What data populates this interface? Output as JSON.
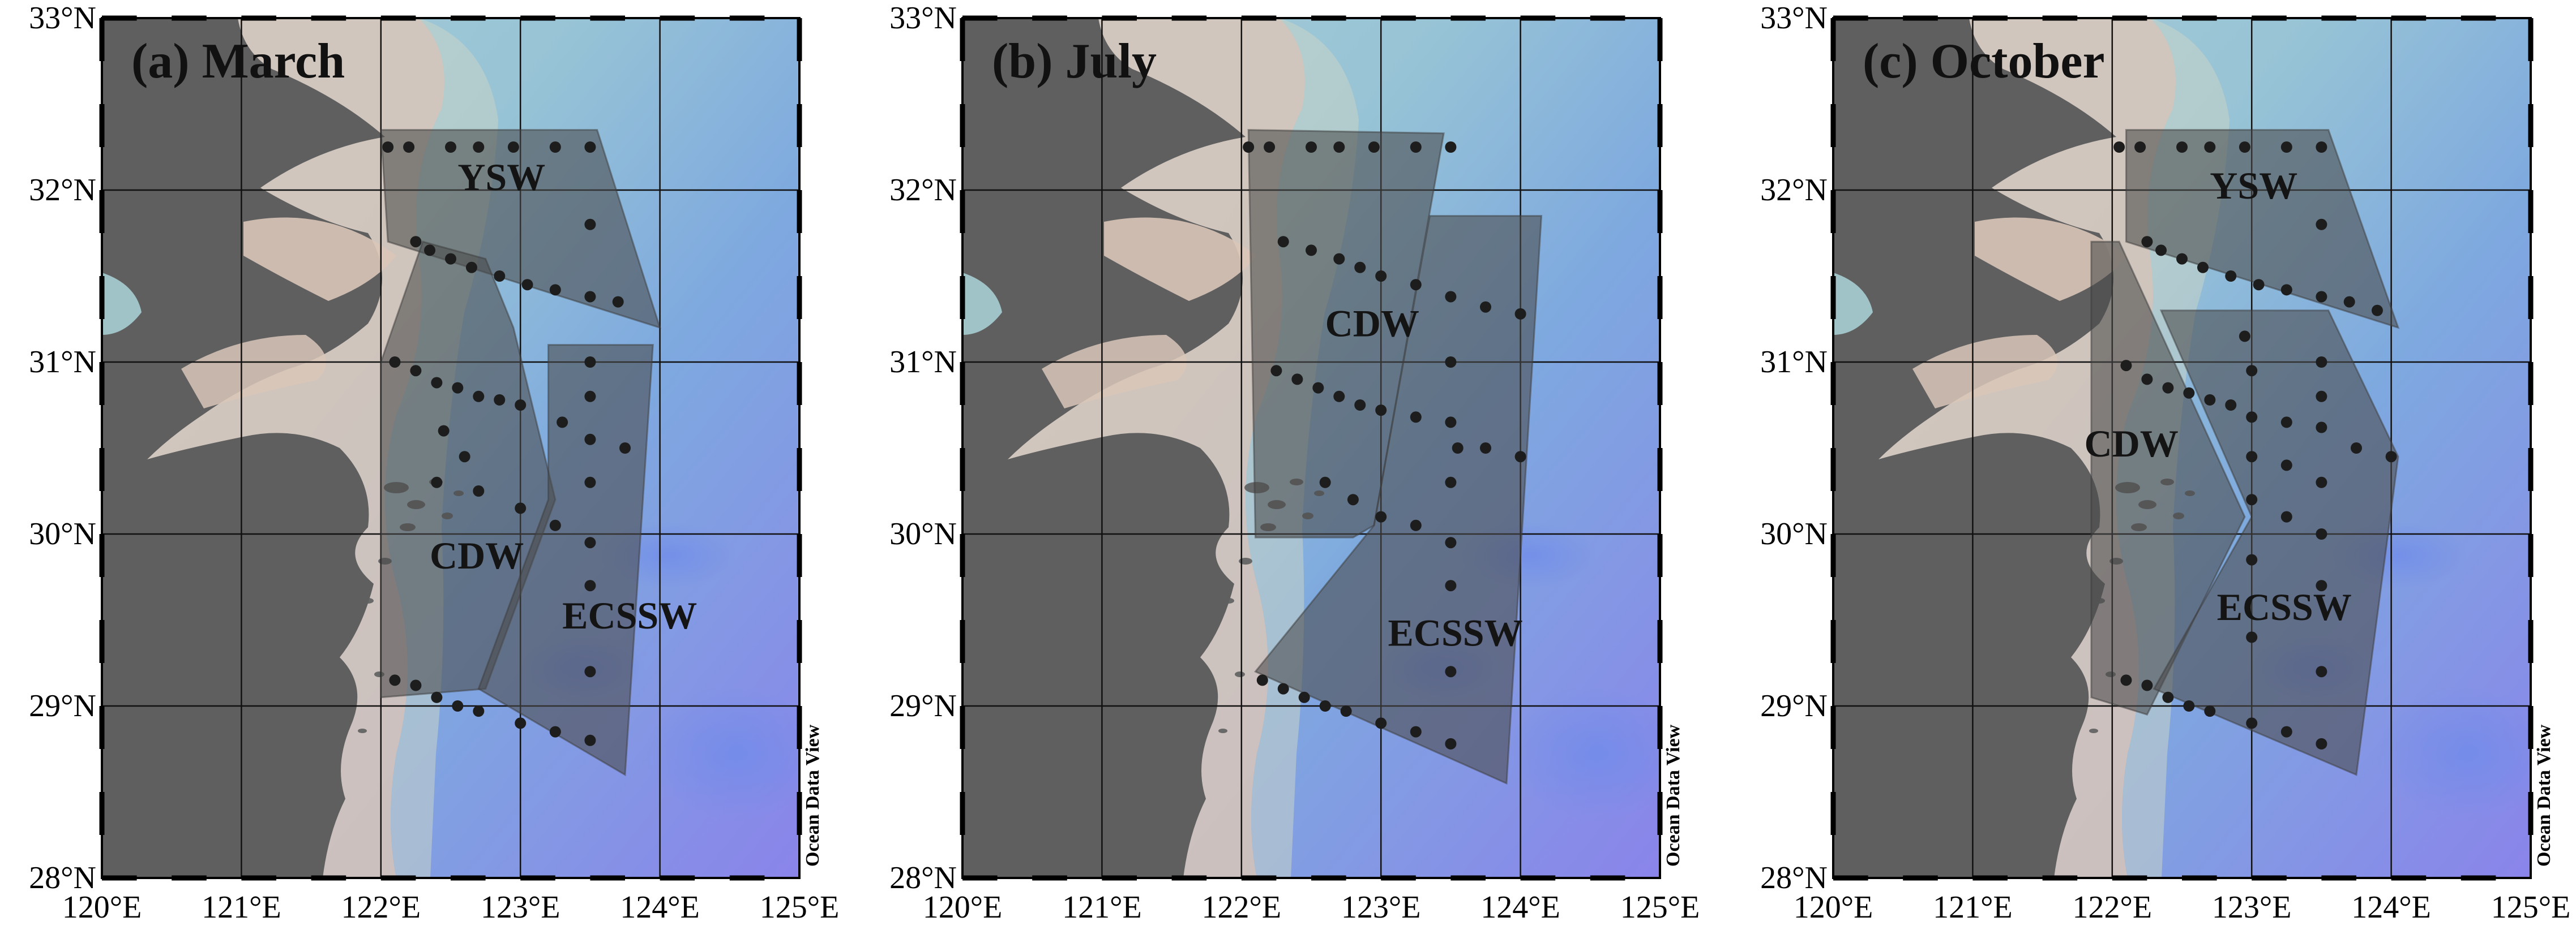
{
  "extent": {
    "lon": [
      120,
      125
    ],
    "lat": [
      28,
      33
    ]
  },
  "lon_ticks": [
    "120°E",
    "121°E",
    "122°E",
    "123°E",
    "124°E",
    "125°E"
  ],
  "lat_ticks": [
    "28°N",
    "29°N",
    "30°N",
    "31°N",
    "32°N",
    "33°N"
  ],
  "credit": "Ocean Data View",
  "colors": {
    "land": "#5f5f5f",
    "shelf_sand": "#d9c5b8",
    "sea_shallow": "#9cc7cf",
    "sea_mid": "#7ea9df",
    "sea_deep": "#8a84ea",
    "region_fill": "#4a4a4a",
    "station": "#1d1d1d"
  },
  "panels": [
    {
      "title": "(a) March",
      "regions": [
        {
          "name": "YSW",
          "label_pos": [
            122.55,
            32.0
          ],
          "polygon": [
            [
              122.0,
              32.35
            ],
            [
              123.55,
              32.35
            ],
            [
              124.0,
              31.2
            ],
            [
              122.05,
              31.7
            ]
          ]
        },
        {
          "name": "CDW",
          "label_pos": [
            122.35,
            29.8
          ],
          "polygon": [
            [
              122.3,
              31.7
            ],
            [
              122.75,
              31.6
            ],
            [
              122.95,
              31.2
            ],
            [
              123.25,
              30.2
            ],
            [
              122.75,
              29.1
            ],
            [
              122.0,
              29.05
            ],
            [
              122.0,
              31.0
            ]
          ]
        },
        {
          "name": "ECSSW",
          "label_pos": [
            123.3,
            29.45
          ],
          "polygon": [
            [
              123.2,
              31.1
            ],
            [
              123.95,
              31.1
            ],
            [
              123.75,
              28.6
            ],
            [
              122.7,
              29.1
            ],
            [
              123.2,
              30.2
            ]
          ]
        }
      ],
      "stations": [
        [
          122.05,
          32.25
        ],
        [
          122.2,
          32.25
        ],
        [
          122.5,
          32.25
        ],
        [
          122.7,
          32.25
        ],
        [
          122.95,
          32.25
        ],
        [
          123.25,
          32.25
        ],
        [
          123.5,
          32.25
        ],
        [
          123.5,
          31.8
        ],
        [
          122.25,
          31.7
        ],
        [
          122.35,
          31.65
        ],
        [
          122.5,
          31.6
        ],
        [
          122.65,
          31.55
        ],
        [
          122.85,
          31.5
        ],
        [
          123.05,
          31.45
        ],
        [
          123.25,
          31.42
        ],
        [
          123.5,
          31.38
        ],
        [
          123.7,
          31.35
        ],
        [
          122.1,
          31.0
        ],
        [
          122.25,
          30.95
        ],
        [
          122.4,
          30.88
        ],
        [
          122.55,
          30.85
        ],
        [
          122.7,
          30.8
        ],
        [
          122.85,
          30.78
        ],
        [
          123.0,
          30.75
        ],
        [
          123.5,
          31.0
        ],
        [
          123.5,
          30.8
        ],
        [
          123.3,
          30.65
        ],
        [
          123.5,
          30.55
        ],
        [
          123.75,
          30.5
        ],
        [
          123.5,
          30.3
        ],
        [
          122.45,
          30.6
        ],
        [
          122.6,
          30.45
        ],
        [
          122.4,
          30.3
        ],
        [
          122.7,
          30.25
        ],
        [
          123.0,
          30.15
        ],
        [
          123.25,
          30.05
        ],
        [
          123.5,
          29.95
        ],
        [
          123.5,
          29.7
        ],
        [
          123.5,
          29.2
        ],
        [
          122.1,
          29.15
        ],
        [
          122.25,
          29.12
        ],
        [
          122.4,
          29.05
        ],
        [
          122.55,
          29.0
        ],
        [
          122.7,
          28.97
        ],
        [
          123.0,
          28.9
        ],
        [
          123.25,
          28.85
        ],
        [
          123.5,
          28.8
        ]
      ]
    },
    {
      "title": "(b) July",
      "regions": [
        {
          "name": "CDW",
          "label_pos": [
            122.6,
            31.15
          ],
          "polygon": [
            [
              122.05,
              32.35
            ],
            [
              123.45,
              32.33
            ],
            [
              122.95,
              30.05
            ],
            [
              122.8,
              29.98
            ],
            [
              122.1,
              29.98
            ]
          ]
        },
        {
          "name": "ECSSW",
          "label_pos": [
            123.05,
            29.35
          ],
          "polygon": [
            [
              123.35,
              31.85
            ],
            [
              124.15,
              31.85
            ],
            [
              123.9,
              28.55
            ],
            [
              122.1,
              29.2
            ],
            [
              122.95,
              30.05
            ]
          ]
        }
      ],
      "stations": [
        [
          122.05,
          32.25
        ],
        [
          122.2,
          32.25
        ],
        [
          122.5,
          32.25
        ],
        [
          122.7,
          32.25
        ],
        [
          122.95,
          32.25
        ],
        [
          123.25,
          32.25
        ],
        [
          123.5,
          32.25
        ],
        [
          122.3,
          31.7
        ],
        [
          122.5,
          31.65
        ],
        [
          122.7,
          31.6
        ],
        [
          122.85,
          31.55
        ],
        [
          123.0,
          31.5
        ],
        [
          123.25,
          31.45
        ],
        [
          123.5,
          31.38
        ],
        [
          123.75,
          31.32
        ],
        [
          124.0,
          31.28
        ],
        [
          123.5,
          31.0
        ],
        [
          122.25,
          30.95
        ],
        [
          122.4,
          30.9
        ],
        [
          122.55,
          30.85
        ],
        [
          122.7,
          30.8
        ],
        [
          122.85,
          30.75
        ],
        [
          123.0,
          30.72
        ],
        [
          123.25,
          30.68
        ],
        [
          123.5,
          30.65
        ],
        [
          123.55,
          30.5
        ],
        [
          123.75,
          30.5
        ],
        [
          124.0,
          30.45
        ],
        [
          123.5,
          30.3
        ],
        [
          122.6,
          30.3
        ],
        [
          122.8,
          30.2
        ],
        [
          123.0,
          30.1
        ],
        [
          123.25,
          30.05
        ],
        [
          123.5,
          29.95
        ],
        [
          123.5,
          29.7
        ],
        [
          123.5,
          29.2
        ],
        [
          122.15,
          29.15
        ],
        [
          122.3,
          29.1
        ],
        [
          122.45,
          29.05
        ],
        [
          122.6,
          29.0
        ],
        [
          122.75,
          28.97
        ],
        [
          123.0,
          28.9
        ],
        [
          123.25,
          28.85
        ],
        [
          123.5,
          28.78
        ]
      ]
    },
    {
      "title": "(c) October",
      "regions": [
        {
          "name": "YSW",
          "label_pos": [
            122.7,
            31.95
          ],
          "polygon": [
            [
              122.1,
              32.35
            ],
            [
              123.55,
              32.35
            ],
            [
              124.05,
              31.2
            ],
            [
              122.1,
              31.7
            ]
          ]
        },
        {
          "name": "CDW",
          "label_pos": [
            121.8,
            30.45
          ],
          "polygon": [
            [
              121.85,
              31.7
            ],
            [
              122.05,
              31.7
            ],
            [
              122.95,
              30.1
            ],
            [
              122.25,
              28.95
            ],
            [
              121.85,
              29.05
            ]
          ]
        },
        {
          "name": "ECSSW",
          "label_pos": [
            122.75,
            29.5
          ],
          "polygon": [
            [
              122.35,
              31.3
            ],
            [
              123.55,
              31.3
            ],
            [
              124.05,
              30.45
            ],
            [
              123.75,
              28.6
            ],
            [
              122.3,
              29.1
            ],
            [
              123.0,
              30.1
            ]
          ]
        }
      ],
      "stations": [
        [
          122.05,
          32.25
        ],
        [
          122.2,
          32.25
        ],
        [
          122.5,
          32.25
        ],
        [
          122.7,
          32.25
        ],
        [
          122.95,
          32.25
        ],
        [
          123.25,
          32.25
        ],
        [
          123.5,
          32.25
        ],
        [
          123.5,
          31.8
        ],
        [
          122.25,
          31.7
        ],
        [
          122.35,
          31.65
        ],
        [
          122.5,
          31.6
        ],
        [
          122.65,
          31.55
        ],
        [
          122.85,
          31.5
        ],
        [
          123.05,
          31.45
        ],
        [
          123.25,
          31.42
        ],
        [
          123.5,
          31.38
        ],
        [
          123.7,
          31.35
        ],
        [
          123.9,
          31.3
        ],
        [
          122.95,
          31.15
        ],
        [
          123.0,
          30.95
        ],
        [
          122.1,
          30.98
        ],
        [
          122.25,
          30.9
        ],
        [
          122.4,
          30.85
        ],
        [
          122.55,
          30.82
        ],
        [
          122.7,
          30.78
        ],
        [
          122.85,
          30.75
        ],
        [
          123.0,
          30.68
        ],
        [
          123.25,
          30.65
        ],
        [
          123.5,
          30.62
        ],
        [
          123.5,
          30.8
        ],
        [
          123.5,
          31.0
        ],
        [
          123.75,
          30.5
        ],
        [
          124.0,
          30.45
        ],
        [
          123.0,
          30.45
        ],
        [
          123.25,
          30.4
        ],
        [
          123.5,
          30.3
        ],
        [
          123.0,
          30.2
        ],
        [
          123.25,
          30.1
        ],
        [
          123.5,
          30.0
        ],
        [
          123.0,
          29.85
        ],
        [
          123.5,
          29.7
        ],
        [
          123.0,
          29.4
        ],
        [
          123.5,
          29.2
        ],
        [
          122.1,
          29.15
        ],
        [
          122.25,
          29.12
        ],
        [
          122.4,
          29.05
        ],
        [
          122.55,
          29.0
        ],
        [
          122.7,
          28.97
        ],
        [
          123.0,
          28.9
        ],
        [
          123.25,
          28.85
        ],
        [
          123.5,
          28.78
        ]
      ]
    }
  ]
}
